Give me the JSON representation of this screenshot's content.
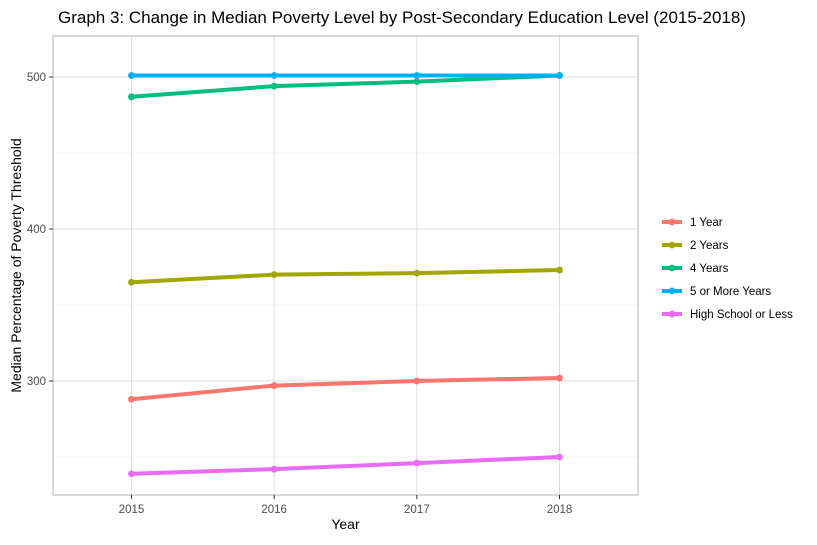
{
  "chart_data": {
    "type": "line",
    "title": "Graph 3: Change in Median Poverty Level by Post-Secondary Education Level (2015-2018)",
    "xlabel": "Year",
    "ylabel": "Median Percentage of Poverty Threshold",
    "x": [
      2015,
      2016,
      2017,
      2018
    ],
    "x_tick_labels": [
      "2015",
      "2016",
      "2017",
      "2018"
    ],
    "xlim": [
      2014.45,
      2018.55
    ],
    "ylim": [
      225,
      527
    ],
    "y_ticks": [
      300,
      400,
      500
    ],
    "y_tick_labels": [
      "300",
      "400",
      "500"
    ],
    "y_minor_ticks": [
      250,
      350,
      450
    ],
    "grid": true,
    "legend_position": "right",
    "series": [
      {
        "name": "1 Year",
        "color": "#F8766D",
        "values": [
          288,
          297,
          300,
          302
        ]
      },
      {
        "name": "2 Years",
        "color": "#A3A500",
        "values": [
          365,
          370,
          371,
          373
        ]
      },
      {
        "name": "4 Years",
        "color": "#00BF7D",
        "values": [
          487,
          494,
          497,
          501
        ]
      },
      {
        "name": "5 or More Years",
        "color": "#00B0F6",
        "values": [
          501,
          501,
          501,
          501
        ]
      },
      {
        "name": "High School or Less",
        "color": "#E76BF3",
        "values": [
          239,
          242,
          246,
          250
        ]
      }
    ]
  }
}
